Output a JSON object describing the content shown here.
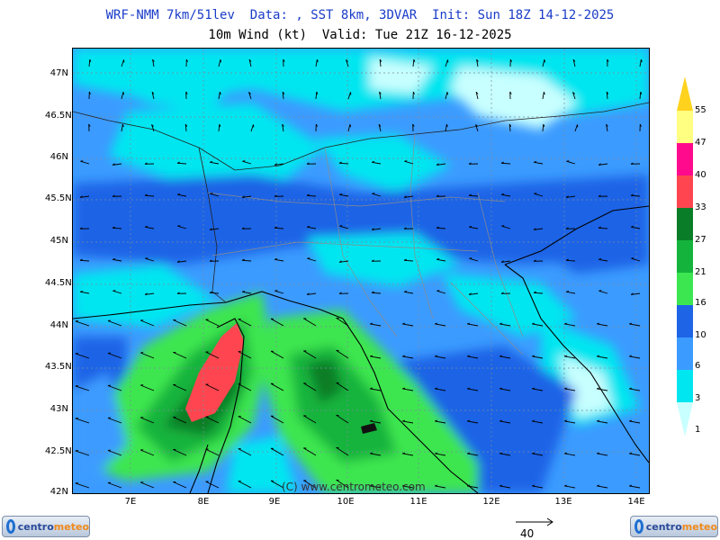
{
  "header": {
    "line1": "WRF-NMM 7km/51lev  Data: , SST 8km, 3DVAR  Init: Sun 18Z 14-12-2025",
    "line2": "10m Wind (kt)  Valid: Tue 21Z 16-12-2025"
  },
  "lat_labels": [
    "47N",
    "46.5N",
    "46N",
    "45.5N",
    "45N",
    "44.5N",
    "44N",
    "43.5N",
    "43N",
    "42.5N",
    "42N"
  ],
  "lon_labels": [
    "7E",
    "8E",
    "9E",
    "10E",
    "11E",
    "12E",
    "13E",
    "14E"
  ],
  "copyright": "(C) www.centrometeo.com",
  "colorbar": {
    "labels": [
      "55",
      "47",
      "40",
      "33",
      "27",
      "21",
      "16",
      "10",
      "6",
      "3",
      "1"
    ],
    "colors": [
      "#ffd21e",
      "#ffff82",
      "#ff0a8c",
      "#ff4650",
      "#0a7d28",
      "#14b43c",
      "#3ce650",
      "#1e64e6",
      "#3c9bff",
      "#00e6f0",
      "#c8ffff"
    ]
  },
  "logo": {
    "part1": "centro",
    "part2": "meteo"
  },
  "reference_vector": {
    "label": "40"
  }
}
